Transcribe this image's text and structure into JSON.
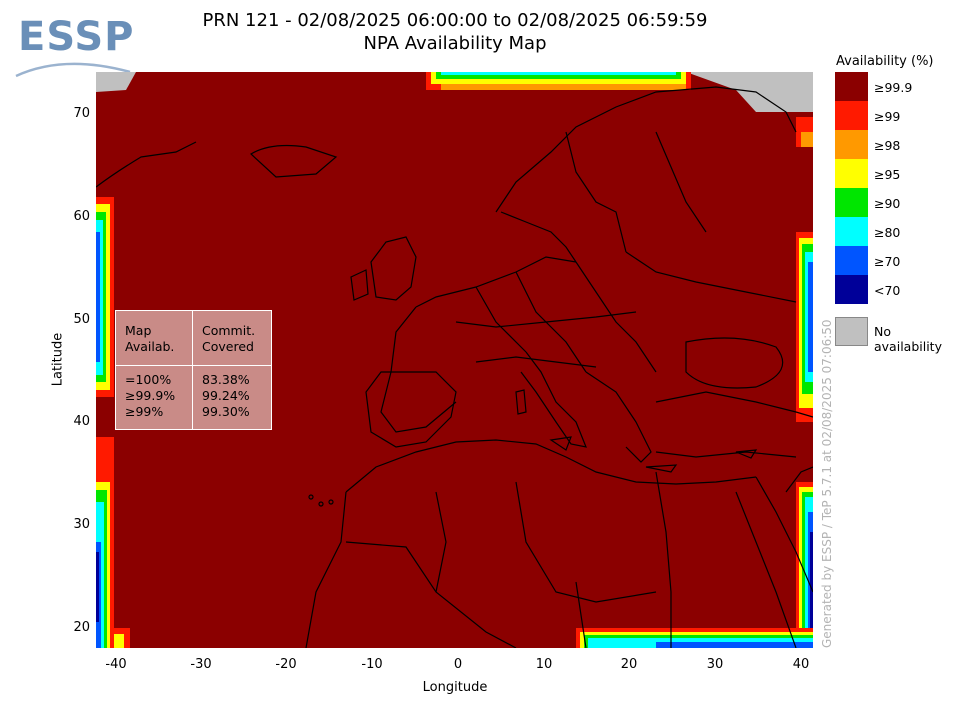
{
  "header": {
    "logo_text": "ESSP",
    "title": "PRN 121 - 02/08/2025 06:00:00 to 02/08/2025 06:59:59",
    "subtitle": "NPA Availability Map"
  },
  "axes": {
    "xlabel": "Longitude",
    "ylabel": "Latitude",
    "x_ticks": [
      "-40",
      "-30",
      "-20",
      "-10",
      "0",
      "10",
      "20",
      "30",
      "40"
    ],
    "y_ticks": [
      "70",
      "60",
      "50",
      "40",
      "30",
      "20"
    ],
    "xlim": [
      -42,
      42
    ],
    "ylim": [
      18,
      74
    ]
  },
  "stats_table": {
    "col1_header_line1": "Map",
    "col1_header_line2": "Availab.",
    "col2_header_line1": "Commit.",
    "col2_header_line2": "Covered",
    "rows": [
      {
        "availability": "=100%",
        "covered": "83.38%"
      },
      {
        "availability": "≥99.9%",
        "covered": "99.24%"
      },
      {
        "availability": "≥99%",
        "covered": "99.30%"
      }
    ]
  },
  "legend": {
    "title": "Availability (%)",
    "items": [
      {
        "label": "≥99.9",
        "color": "#8b0000"
      },
      {
        "label": "≥99",
        "color": "#ff1a00"
      },
      {
        "label": "≥98",
        "color": "#ff9900"
      },
      {
        "label": "≥95",
        "color": "#ffff00"
      },
      {
        "label": "≥90",
        "color": "#00e600"
      },
      {
        "label": "≥80",
        "color": "#00ffff"
      },
      {
        "label": "≥70",
        "color": "#0055ff"
      },
      {
        "label": "<70",
        "color": "#000099"
      }
    ],
    "no_availability_label": "No availability",
    "no_availability_color": "#c0c0c0"
  },
  "credit": "Generated by ESSP / TeP 5.7.1 at 02/08/2025 07:06:50"
}
